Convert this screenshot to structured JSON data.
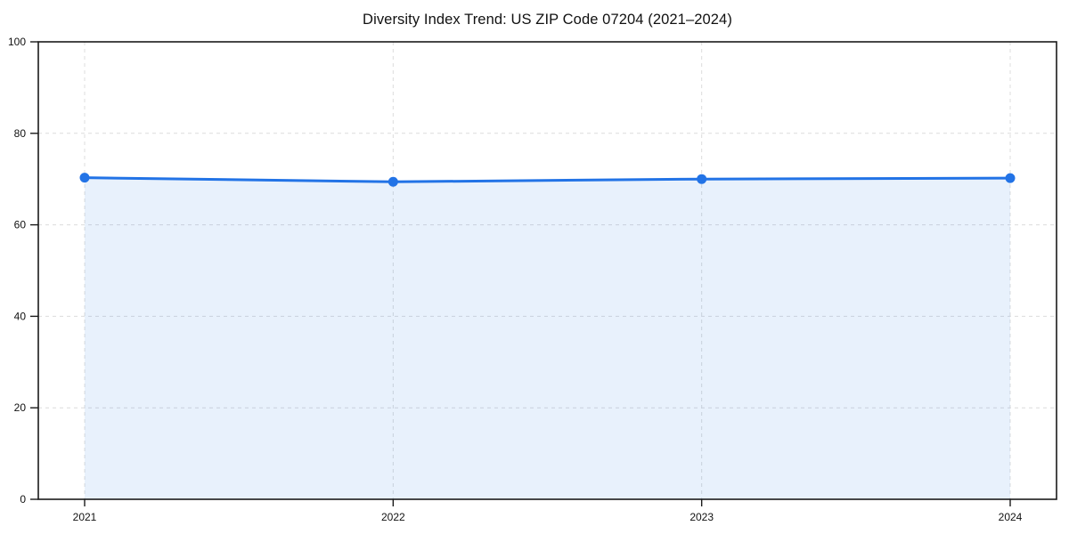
{
  "chart_data": {
    "type": "line",
    "title": "Diversity Index Trend: US ZIP Code 07204 (2021–2024)",
    "x": [
      "2021",
      "2022",
      "2023",
      "2024"
    ],
    "series": [
      {
        "name": "Diversity Index",
        "values": [
          70.3,
          69.4,
          70.0,
          70.2
        ]
      }
    ],
    "ylim": [
      0,
      100
    ],
    "yticks": [
      0,
      20,
      40,
      60,
      80,
      100
    ],
    "xlabel": "",
    "ylabel": "",
    "grid": true,
    "grid_style": "dashed",
    "legend_position": "none",
    "area_fill": true,
    "marker": "circle",
    "colors": {
      "line": "#2273e6",
      "area_fill": "rgba(34,115,230,0.10)",
      "grid": "#dcdcdc",
      "axis": "#1a1a1a",
      "text": "#111111",
      "background": "#ffffff"
    }
  }
}
